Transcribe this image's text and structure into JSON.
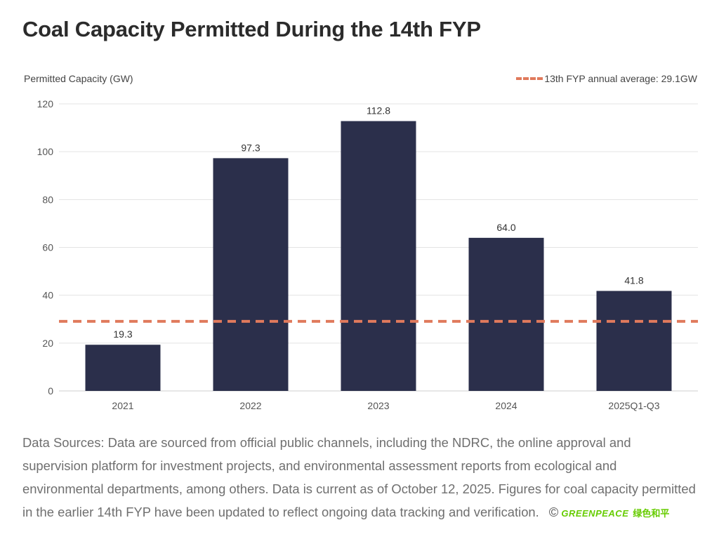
{
  "title": "Coal Capacity Permitted During the 14th FYP",
  "chart_data": {
    "type": "bar",
    "title": "Coal Capacity Permitted During the 14th FYP",
    "xlabel": "",
    "ylabel": "Permitted Capacity (GW)",
    "categories": [
      "2021",
      "2022",
      "2023",
      "2024",
      "2025Q1-Q3"
    ],
    "values": [
      19.3,
      97.3,
      112.8,
      64.0,
      41.8
    ],
    "value_labels": [
      "19.3",
      "97.3",
      "112.8",
      "64.0",
      "41.8"
    ],
    "ylim": [
      0,
      120
    ],
    "yticks": [
      "0",
      "20",
      "40",
      "60",
      "80",
      "100",
      "120"
    ],
    "grid": true,
    "bar_color": "#2b2f4b",
    "reference_line": {
      "value": 29.1,
      "label": "13th FYP annual average: 29.1GW",
      "color": "#e07a5c",
      "style": "dashed"
    },
    "legend_position": "top-right"
  },
  "footer": {
    "source_text": "Data Sources: Data are sourced from official public channels, including the NDRC, the online approval and supervision platform for investment projects, and environmental assessment reports from ecological and environmental departments, among others. Data is current as of October 12, 2025. Figures for coal capacity permitted in the earlier 14th FYP have been updated to reflect ongoing data tracking and verification.",
    "copyright_symbol": "©",
    "logo_text": "GREENPEACE",
    "logo_cn": "绿色和平"
  }
}
